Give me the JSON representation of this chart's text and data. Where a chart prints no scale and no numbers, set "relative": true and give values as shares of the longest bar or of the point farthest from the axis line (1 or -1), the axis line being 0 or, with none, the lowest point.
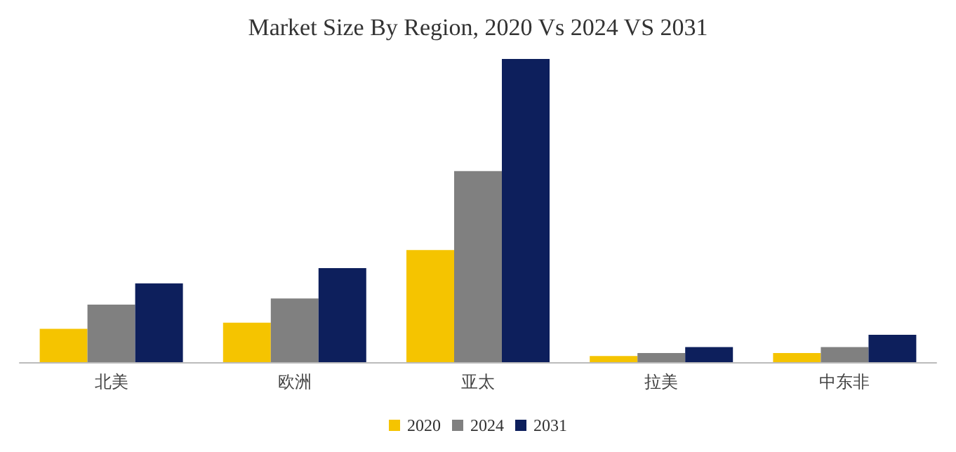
{
  "chart_data": {
    "type": "bar",
    "title": "Market Size By Region, 2020 Vs 2024 VS 2031",
    "relative": true,
    "categories": [
      "北美",
      "欧洲",
      "亚太",
      "拉美",
      "中东非"
    ],
    "series": [
      {
        "name": "2020",
        "color": "#f5c400",
        "values": [
          0.11,
          0.13,
          0.37,
          0.02,
          0.03
        ]
      },
      {
        "name": "2024",
        "color": "#808080",
        "values": [
          0.19,
          0.21,
          0.63,
          0.03,
          0.05
        ]
      },
      {
        "name": "2031",
        "color": "#0d1f5c",
        "values": [
          0.26,
          0.31,
          1,
          0.05,
          0.09
        ]
      }
    ],
    "legend": "bottom"
  }
}
